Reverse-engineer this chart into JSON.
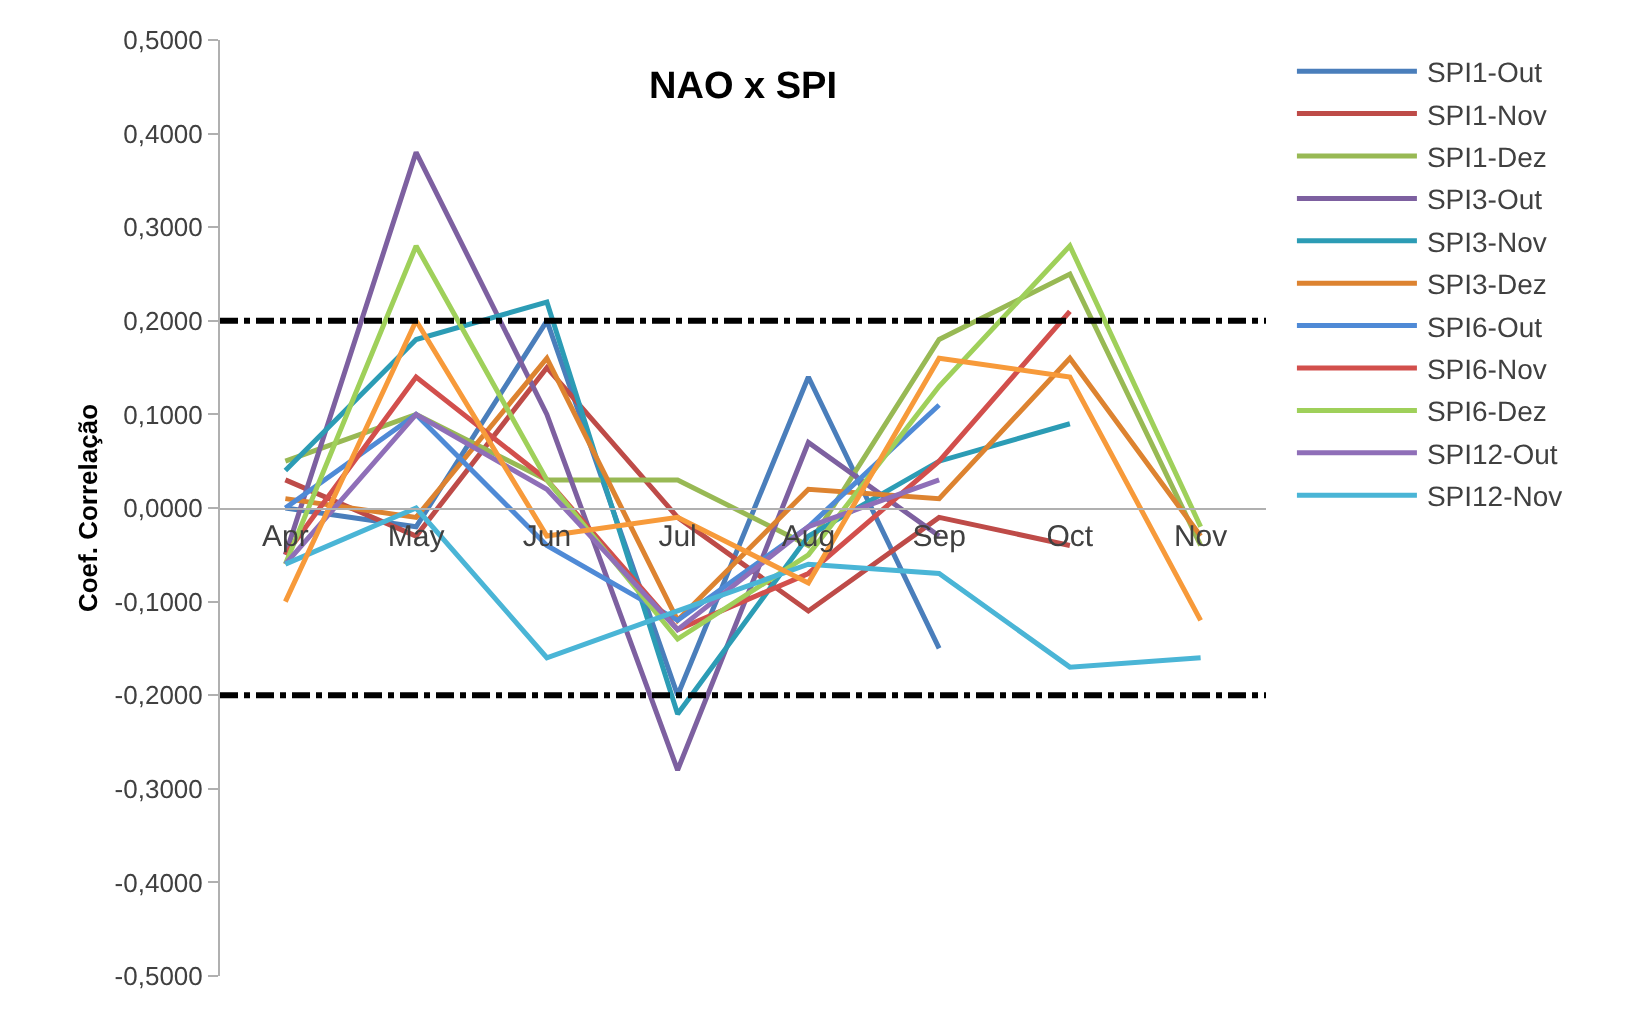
{
  "chart_data": {
    "type": "line",
    "title": "NAO x SPI",
    "ylabel": "Coef. Correlação",
    "categories": [
      "Apr",
      "May",
      "Jun",
      "Jul",
      "Aug",
      "Sep",
      "Oct",
      "Nov"
    ],
    "ylim": [
      -0.5,
      0.5
    ],
    "yticks": [
      {
        "value": -0.5,
        "label": "-0,5000"
      },
      {
        "value": -0.4,
        "label": "-0,4000"
      },
      {
        "value": -0.3,
        "label": "-0,3000"
      },
      {
        "value": -0.2,
        "label": "-0,2000"
      },
      {
        "value": -0.1,
        "label": "-0,1000"
      },
      {
        "value": 0,
        "label": "0,0000"
      },
      {
        "value": 0.1,
        "label": "0,1000"
      },
      {
        "value": 0.2,
        "label": "0,2000"
      },
      {
        "value": 0.3,
        "label": "0,3000"
      },
      {
        "value": 0.4,
        "label": "0,4000"
      },
      {
        "value": 0.5,
        "label": "0,5000"
      }
    ],
    "legend": "right",
    "marker": "none",
    "line_style": "solid",
    "ref_lines": [
      {
        "axis": "y",
        "value": 0.2,
        "color": "#000000",
        "line_style": "dashdot"
      },
      {
        "axis": "y",
        "value": -0.2,
        "color": "#000000",
        "line_style": "dashdot"
      }
    ],
    "series": [
      {
        "name": "SPI1-Out",
        "color": "#4a7ebb",
        "values": [
          0.0,
          -0.02,
          0.2,
          -0.2,
          0.14,
          -0.15,
          null,
          null
        ]
      },
      {
        "name": "SPI1-Nov",
        "color": "#be4b48",
        "values": [
          0.03,
          -0.03,
          0.15,
          -0.01,
          -0.11,
          -0.01,
          -0.04,
          null
        ]
      },
      {
        "name": "SPI1-Dez",
        "color": "#98b954",
        "values": [
          0.05,
          0.1,
          0.03,
          0.03,
          -0.04,
          0.18,
          0.25,
          -0.04
        ]
      },
      {
        "name": "SPI3-Out",
        "color": "#7d60a0",
        "values": [
          -0.05,
          0.38,
          0.1,
          -0.28,
          0.07,
          -0.03,
          null,
          null
        ]
      },
      {
        "name": "SPI3-Nov",
        "color": "#2c9cb5",
        "values": [
          0.04,
          0.18,
          0.22,
          -0.22,
          -0.03,
          0.05,
          0.09,
          null
        ]
      },
      {
        "name": "SPI3-Dez",
        "color": "#dd8330",
        "values": [
          0.01,
          -0.01,
          0.16,
          -0.12,
          0.02,
          0.01,
          0.16,
          -0.03
        ]
      },
      {
        "name": "SPI6-Out",
        "color": "#4f8ad6",
        "values": [
          0.0,
          0.1,
          -0.04,
          -0.12,
          -0.02,
          0.11,
          null,
          null
        ]
      },
      {
        "name": "SPI6-Nov",
        "color": "#d24f4c",
        "values": [
          -0.05,
          0.14,
          0.03,
          -0.13,
          -0.07,
          0.05,
          0.21,
          null
        ]
      },
      {
        "name": "SPI6-Dez",
        "color": "#9fd05a",
        "values": [
          -0.06,
          0.28,
          0.03,
          -0.14,
          -0.05,
          0.13,
          0.28,
          -0.02
        ]
      },
      {
        "name": "SPI12-Out",
        "color": "#8f6fb8",
        "values": [
          -0.06,
          0.1,
          0.02,
          -0.13,
          -0.02,
          0.03,
          null,
          null
        ]
      },
      {
        "name": "SPI12-Nov",
        "color": "#4ab5d6",
        "values": [
          -0.06,
          0.0,
          -0.16,
          -0.11,
          -0.06,
          -0.07,
          -0.17,
          -0.16
        ]
      },
      {
        "color": "#f79a3a",
        "values": [
          -0.1,
          0.2,
          -0.03,
          -0.01,
          -0.08,
          0.16,
          0.14,
          -0.12
        ]
      }
    ]
  }
}
